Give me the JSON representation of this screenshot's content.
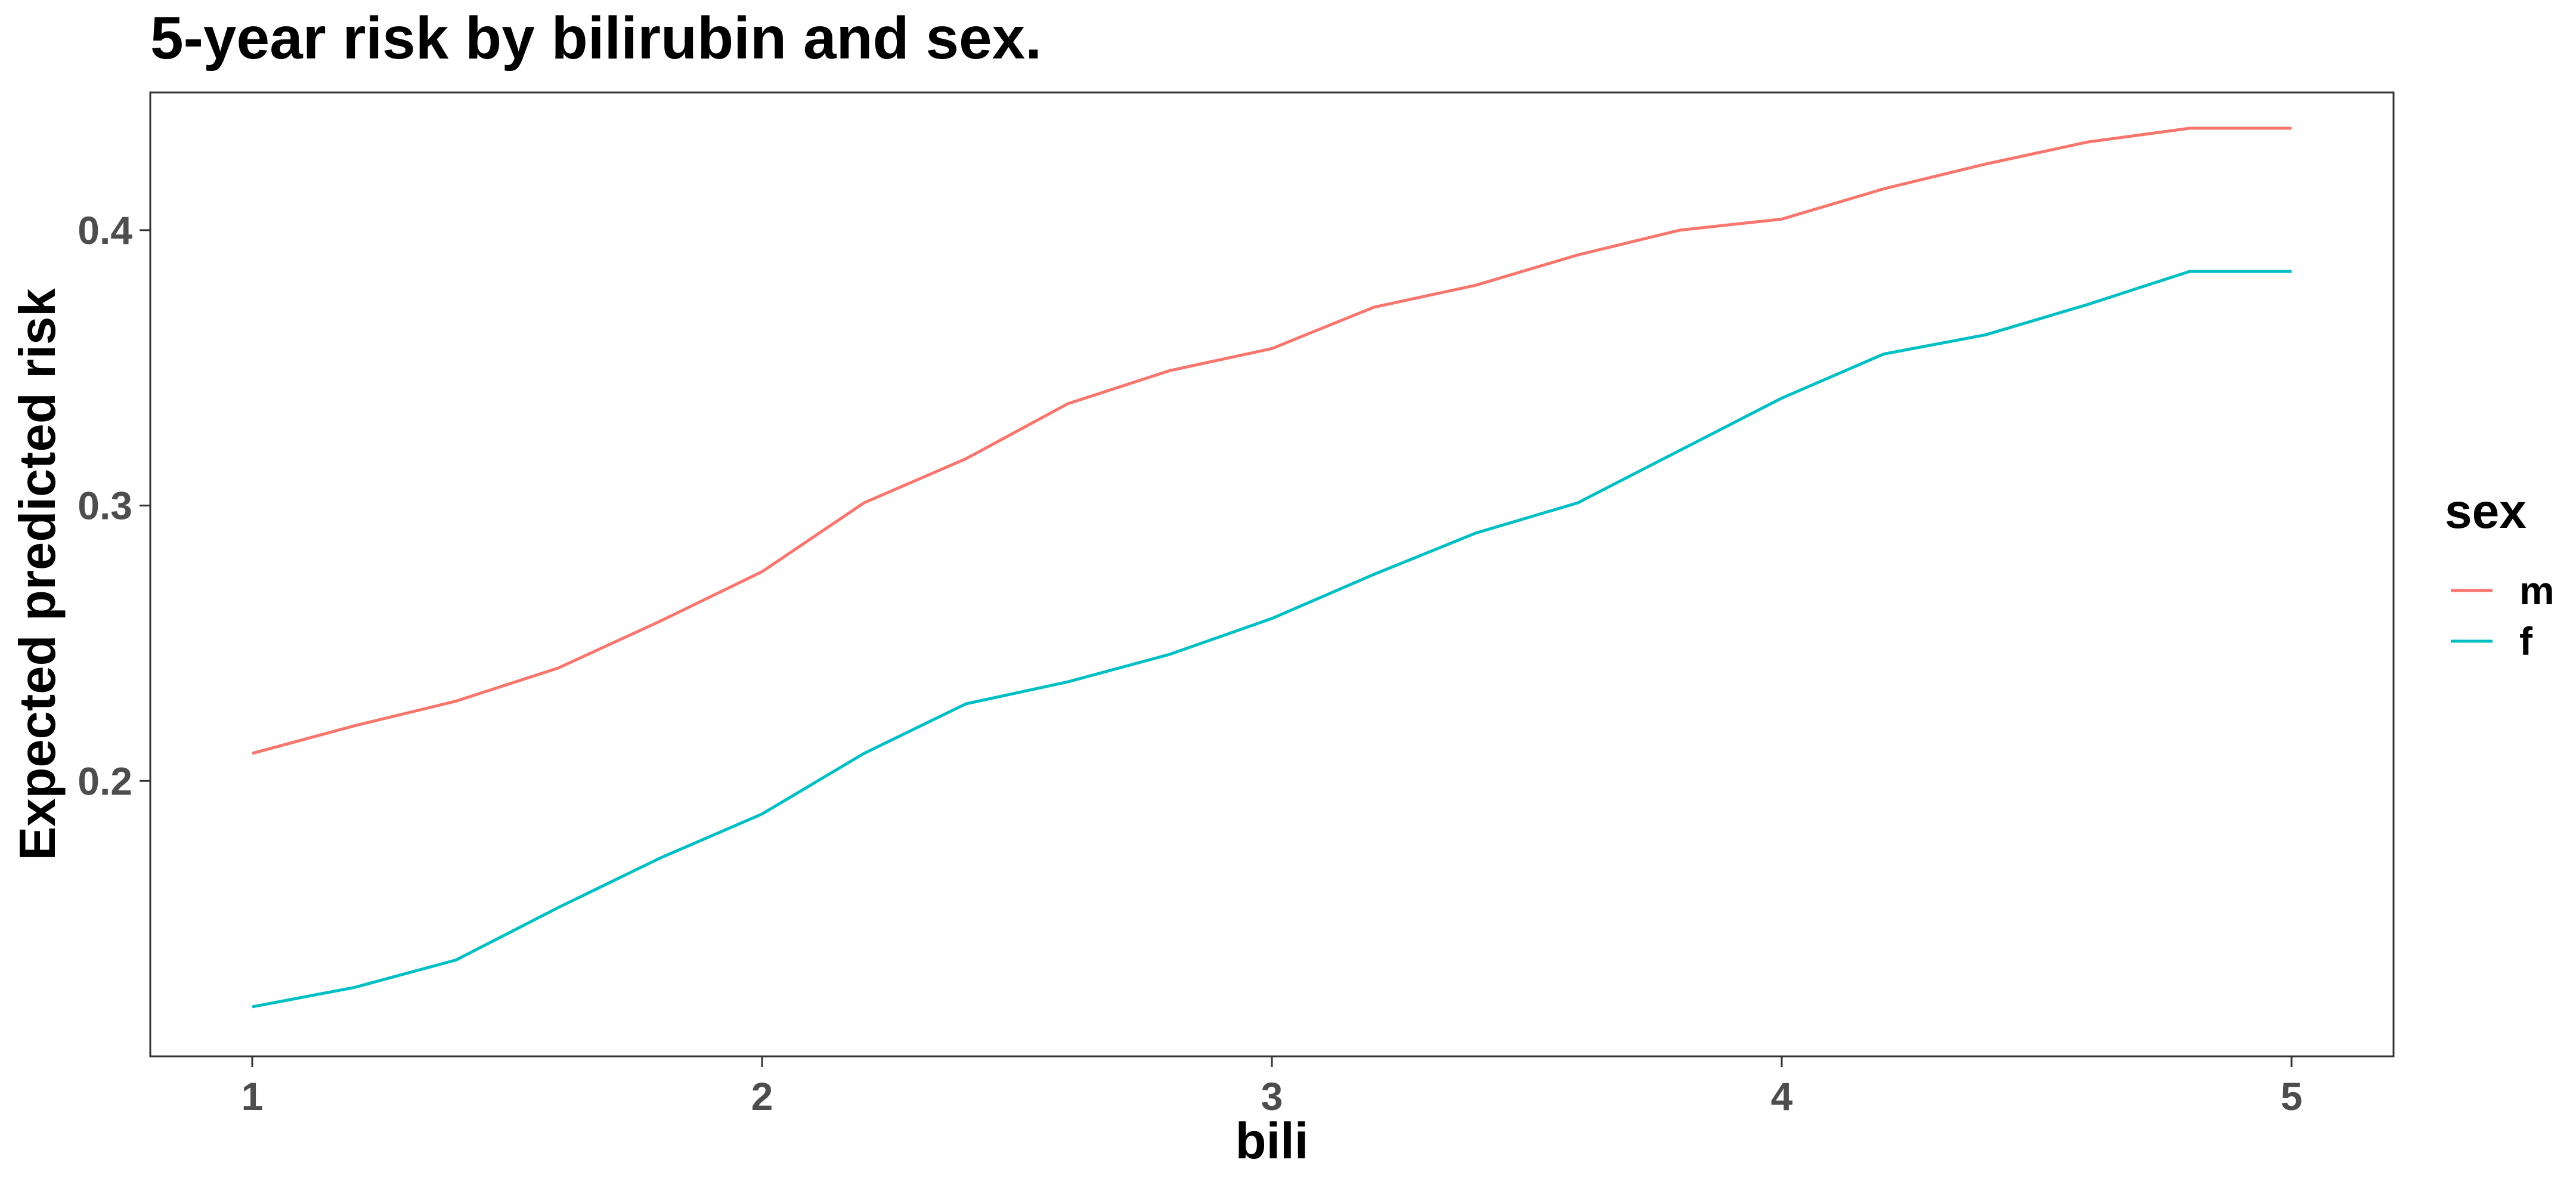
{
  "chart_data": {
    "type": "line",
    "title": "5-year risk by bilirubin and sex.",
    "xlabel": "bili",
    "ylabel": "Expected predicted risk",
    "xlim": [
      0.8,
      5.2
    ],
    "ylim": [
      0.1,
      0.45
    ],
    "x_ticks": [
      1,
      2,
      3,
      4,
      5
    ],
    "x_tick_labels": [
      "1",
      "2",
      "3",
      "4",
      "5"
    ],
    "y_ticks": [
      0.2,
      0.3,
      0.4
    ],
    "y_tick_labels": [
      "0.2",
      "0.3",
      "0.4"
    ],
    "grid": false,
    "legend": {
      "title": "sex",
      "placement": "right"
    },
    "series": [
      {
        "name": "m",
        "color": "#F8766D",
        "x": [
          1.0,
          1.2,
          1.4,
          1.6,
          1.8,
          2.0,
          2.2,
          2.4,
          2.6,
          2.8,
          3.0,
          3.2,
          3.4,
          3.6,
          3.8,
          4.0,
          4.2,
          4.4,
          4.6,
          4.8,
          5.0
        ],
        "y": [
          0.21,
          0.22,
          0.229,
          0.241,
          0.258,
          0.276,
          0.301,
          0.317,
          0.337,
          0.349,
          0.357,
          0.372,
          0.38,
          0.391,
          0.4,
          0.404,
          0.415,
          0.424,
          0.432,
          0.437,
          0.437
        ]
      },
      {
        "name": "f",
        "color": "#00BFC4",
        "x": [
          1.0,
          1.2,
          1.4,
          1.6,
          1.8,
          2.0,
          2.2,
          2.4,
          2.6,
          2.8,
          3.0,
          3.2,
          3.4,
          3.6,
          3.8,
          4.0,
          4.2,
          4.4,
          4.6,
          4.8,
          5.0
        ],
        "y": [
          0.118,
          0.125,
          0.135,
          0.154,
          0.172,
          0.188,
          0.21,
          0.228,
          0.236,
          0.246,
          0.259,
          0.275,
          0.29,
          0.301,
          0.32,
          0.339,
          0.355,
          0.362,
          0.373,
          0.385,
          0.385
        ]
      }
    ]
  }
}
